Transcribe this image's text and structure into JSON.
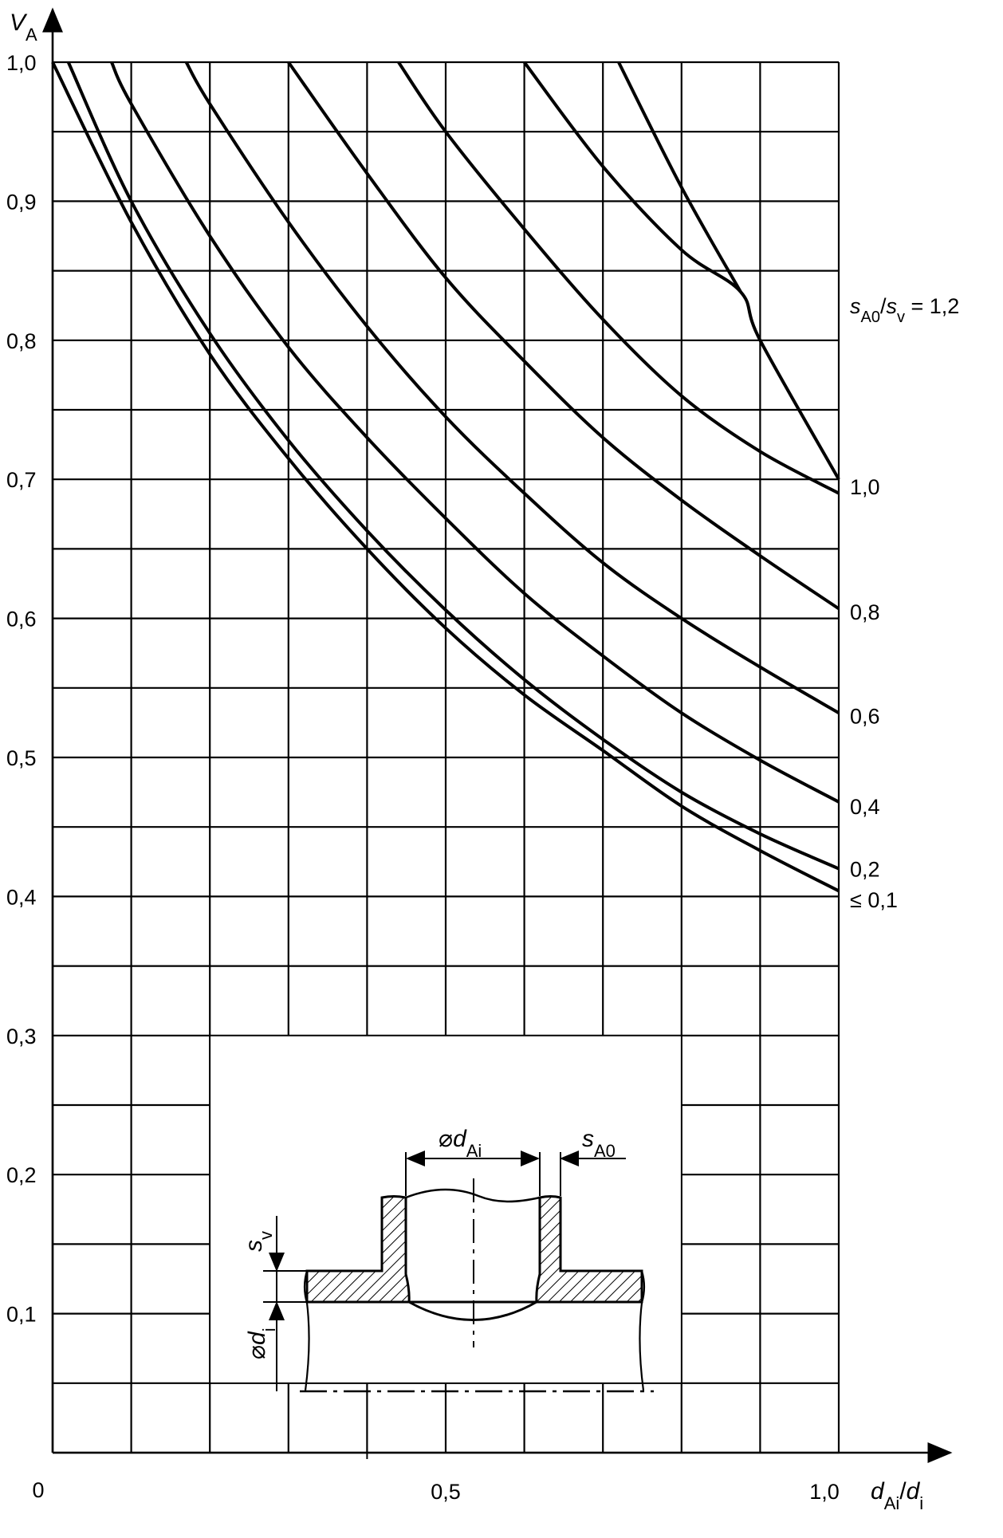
{
  "chart_data": {
    "type": "line",
    "title": "",
    "xlabel": {
      "main": "d",
      "sub": "Ai",
      "slash": "/",
      "main2": "d",
      "sub2": "i"
    },
    "ylabel": {
      "main": "V",
      "sub": "A"
    },
    "xlim": [
      0,
      1.0
    ],
    "ylim": [
      0,
      1.0
    ],
    "grid": true,
    "x_ticks": [
      {
        "value": 0,
        "label": "0"
      },
      {
        "value": 0.5,
        "label": "0,5"
      },
      {
        "value": 1.0,
        "label": "1,0"
      }
    ],
    "y_ticks": [
      {
        "value": 0.1,
        "label": "0,1"
      },
      {
        "value": 0.2,
        "label": "0,2"
      },
      {
        "value": 0.3,
        "label": "0,3"
      },
      {
        "value": 0.4,
        "label": "0,4"
      },
      {
        "value": 0.5,
        "label": "0,5"
      },
      {
        "value": 0.6,
        "label": "0,6"
      },
      {
        "value": 0.7,
        "label": "0,7"
      },
      {
        "value": 0.8,
        "label": "0,8"
      },
      {
        "value": 0.9,
        "label": "0,9"
      },
      {
        "value": 1.0,
        "label": "1,0"
      }
    ],
    "series": [
      {
        "label": "≤ 0,1",
        "points": [
          [
            0,
            1.0
          ],
          [
            0.1,
            0.885
          ],
          [
            0.2,
            0.79
          ],
          [
            0.3,
            0.715
          ],
          [
            0.4,
            0.65
          ],
          [
            0.5,
            0.593
          ],
          [
            0.6,
            0.545
          ],
          [
            0.7,
            0.505
          ],
          [
            0.8,
            0.465
          ],
          [
            0.9,
            0.433
          ],
          [
            1.0,
            0.404
          ]
        ]
      },
      {
        "label": "0,2",
        "points": [
          [
            0.02,
            1.0
          ],
          [
            0.1,
            0.9
          ],
          [
            0.2,
            0.805
          ],
          [
            0.3,
            0.728
          ],
          [
            0.4,
            0.663
          ],
          [
            0.5,
            0.606
          ],
          [
            0.6,
            0.556
          ],
          [
            0.7,
            0.513
          ],
          [
            0.8,
            0.475
          ],
          [
            0.9,
            0.445
          ],
          [
            1.0,
            0.42
          ]
        ]
      },
      {
        "label": "0,4",
        "points": [
          [
            0.075,
            1.0
          ],
          [
            0.1,
            0.97
          ],
          [
            0.2,
            0.875
          ],
          [
            0.3,
            0.795
          ],
          [
            0.4,
            0.73
          ],
          [
            0.5,
            0.672
          ],
          [
            0.6,
            0.618
          ],
          [
            0.7,
            0.573
          ],
          [
            0.8,
            0.532
          ],
          [
            0.9,
            0.498
          ],
          [
            1.0,
            0.468
          ]
        ]
      },
      {
        "label": "0,6",
        "points": [
          [
            0.17,
            1.0
          ],
          [
            0.2,
            0.97
          ],
          [
            0.3,
            0.885
          ],
          [
            0.4,
            0.81
          ],
          [
            0.5,
            0.745
          ],
          [
            0.6,
            0.69
          ],
          [
            0.7,
            0.64
          ],
          [
            0.8,
            0.6
          ],
          [
            0.9,
            0.565
          ],
          [
            1.0,
            0.532
          ]
        ]
      },
      {
        "label": "0,8",
        "points": [
          [
            0.3,
            1.0
          ],
          [
            0.4,
            0.92
          ],
          [
            0.5,
            0.845
          ],
          [
            0.6,
            0.785
          ],
          [
            0.7,
            0.73
          ],
          [
            0.8,
            0.685
          ],
          [
            0.9,
            0.645
          ],
          [
            1.0,
            0.607
          ]
        ]
      },
      {
        "label": "1,0",
        "points": [
          [
            0.44,
            1.0
          ],
          [
            0.5,
            0.95
          ],
          [
            0.6,
            0.88
          ],
          [
            0.7,
            0.815
          ],
          [
            0.8,
            0.76
          ],
          [
            0.9,
            0.72
          ],
          [
            1.0,
            0.69
          ]
        ]
      },
      {
        "label": "s_A0/s_v = 1,2",
        "points": [
          [
            0.6,
            1.0
          ],
          [
            0.7,
            0.925
          ],
          [
            0.8,
            0.865
          ],
          [
            0.875,
            0.835
          ],
          [
            0.9,
            0.8
          ],
          [
            1.0,
            0.7
          ]
        ]
      },
      {
        "label": "",
        "points": [
          [
            0.72,
            1.0
          ],
          [
            0.8,
            0.91
          ],
          [
            0.875,
            0.835
          ]
        ]
      }
    ],
    "curve_labels": [
      {
        "ref": 6,
        "parts": [
          {
            "t": "s",
            "style": "italic"
          },
          {
            "t": "A0",
            "style": "sub"
          },
          {
            "t": "/",
            "style": "normal"
          },
          {
            "t": "s",
            "style": "italic"
          },
          {
            "t": "v",
            "style": "sub"
          },
          {
            "t": " = 1,2",
            "style": "normal"
          }
        ],
        "at_y": 0.825
      },
      {
        "ref": 5,
        "text": "1,0",
        "at_y": 0.695
      },
      {
        "ref": 4,
        "text": "0,8",
        "at_y": 0.605
      },
      {
        "ref": 3,
        "text": "0,6",
        "at_y": 0.53
      },
      {
        "ref": 2,
        "text": "0,4",
        "at_y": 0.465
      },
      {
        "ref": 1,
        "text": "0,2",
        "at_y": 0.42
      },
      {
        "ref": 0,
        "text": "≤ 0,1",
        "at_y": 0.398
      }
    ],
    "inset": {
      "labels": {
        "dAi": {
          "prefix": "⌀",
          "main": "d",
          "sub": "Ai"
        },
        "sA0": {
          "main": "s",
          "sub": "A0"
        },
        "sv": {
          "main": "s",
          "sub": "v"
        },
        "di": {
          "prefix": "⌀",
          "main": "d",
          "sub": "i"
        }
      }
    }
  }
}
